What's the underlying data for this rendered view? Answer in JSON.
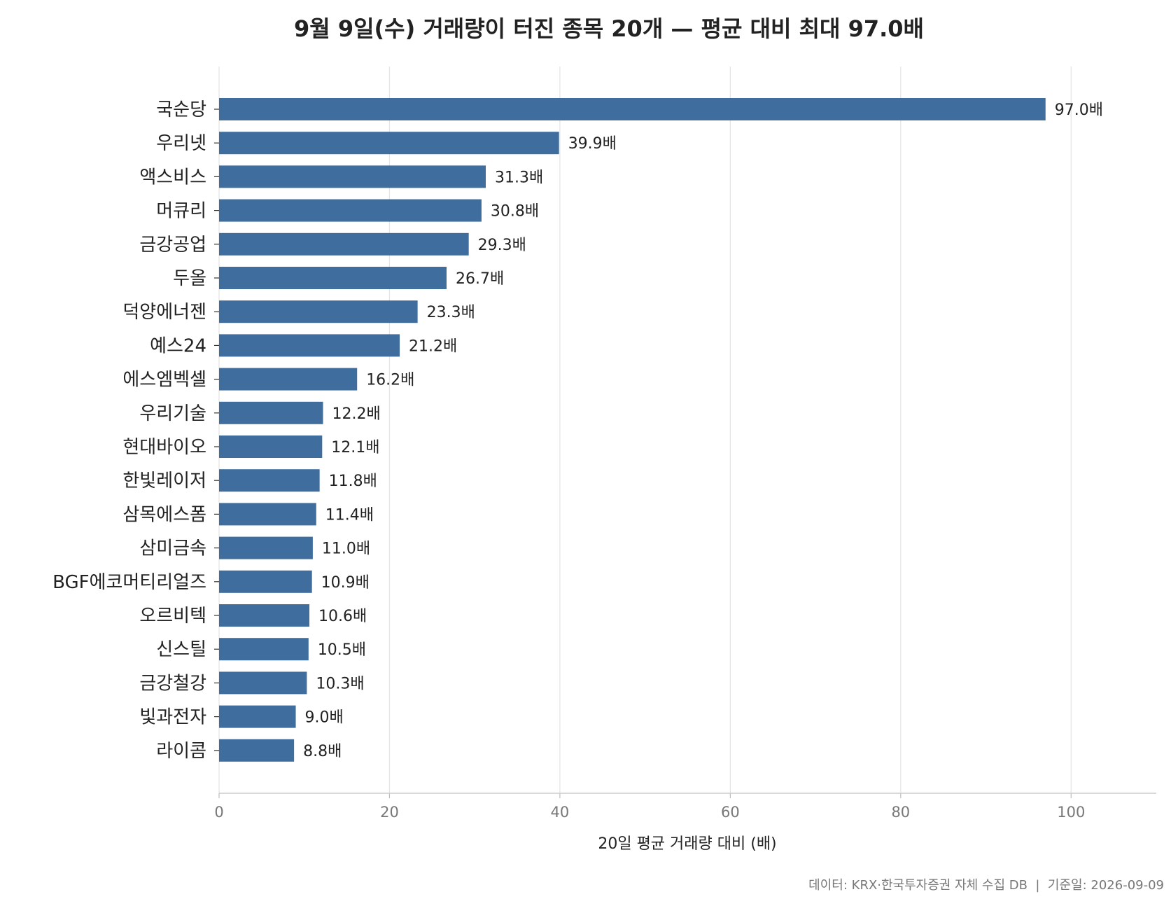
{
  "chart_data": {
    "type": "bar",
    "orientation": "horizontal",
    "title": "9월 9일(수) 거래량이 터진 종목 20개 — 평균 대비 최대 97.0배",
    "xlabel": "20일 평균 거래량 대비 (배)",
    "ylabel": "",
    "xlim": [
      0,
      110
    ],
    "xticks": [
      0,
      20,
      40,
      60,
      80,
      100
    ],
    "grid": "vertical",
    "bar_color": "#3f6e9e",
    "value_suffix": "배",
    "categories": [
      "국순당",
      "우리넷",
      "액스비스",
      "머큐리",
      "금강공업",
      "두올",
      "덕양에너젠",
      "예스24",
      "에스엠벡셀",
      "우리기술",
      "현대바이오",
      "한빛레이저",
      "삼목에스폼",
      "삼미금속",
      "BGF에코머티리얼즈",
      "오르비텍",
      "신스틸",
      "금강철강",
      "빛과전자",
      "라이콤"
    ],
    "values": [
      97.0,
      39.9,
      31.3,
      30.8,
      29.3,
      26.7,
      23.3,
      21.2,
      16.2,
      12.2,
      12.1,
      11.8,
      11.4,
      11.0,
      10.9,
      10.6,
      10.5,
      10.3,
      9.0,
      8.8
    ],
    "footnote": "데이터: KRX·한국투자증권 자체 수집 DB  |  기준일: 2026-09-09"
  }
}
